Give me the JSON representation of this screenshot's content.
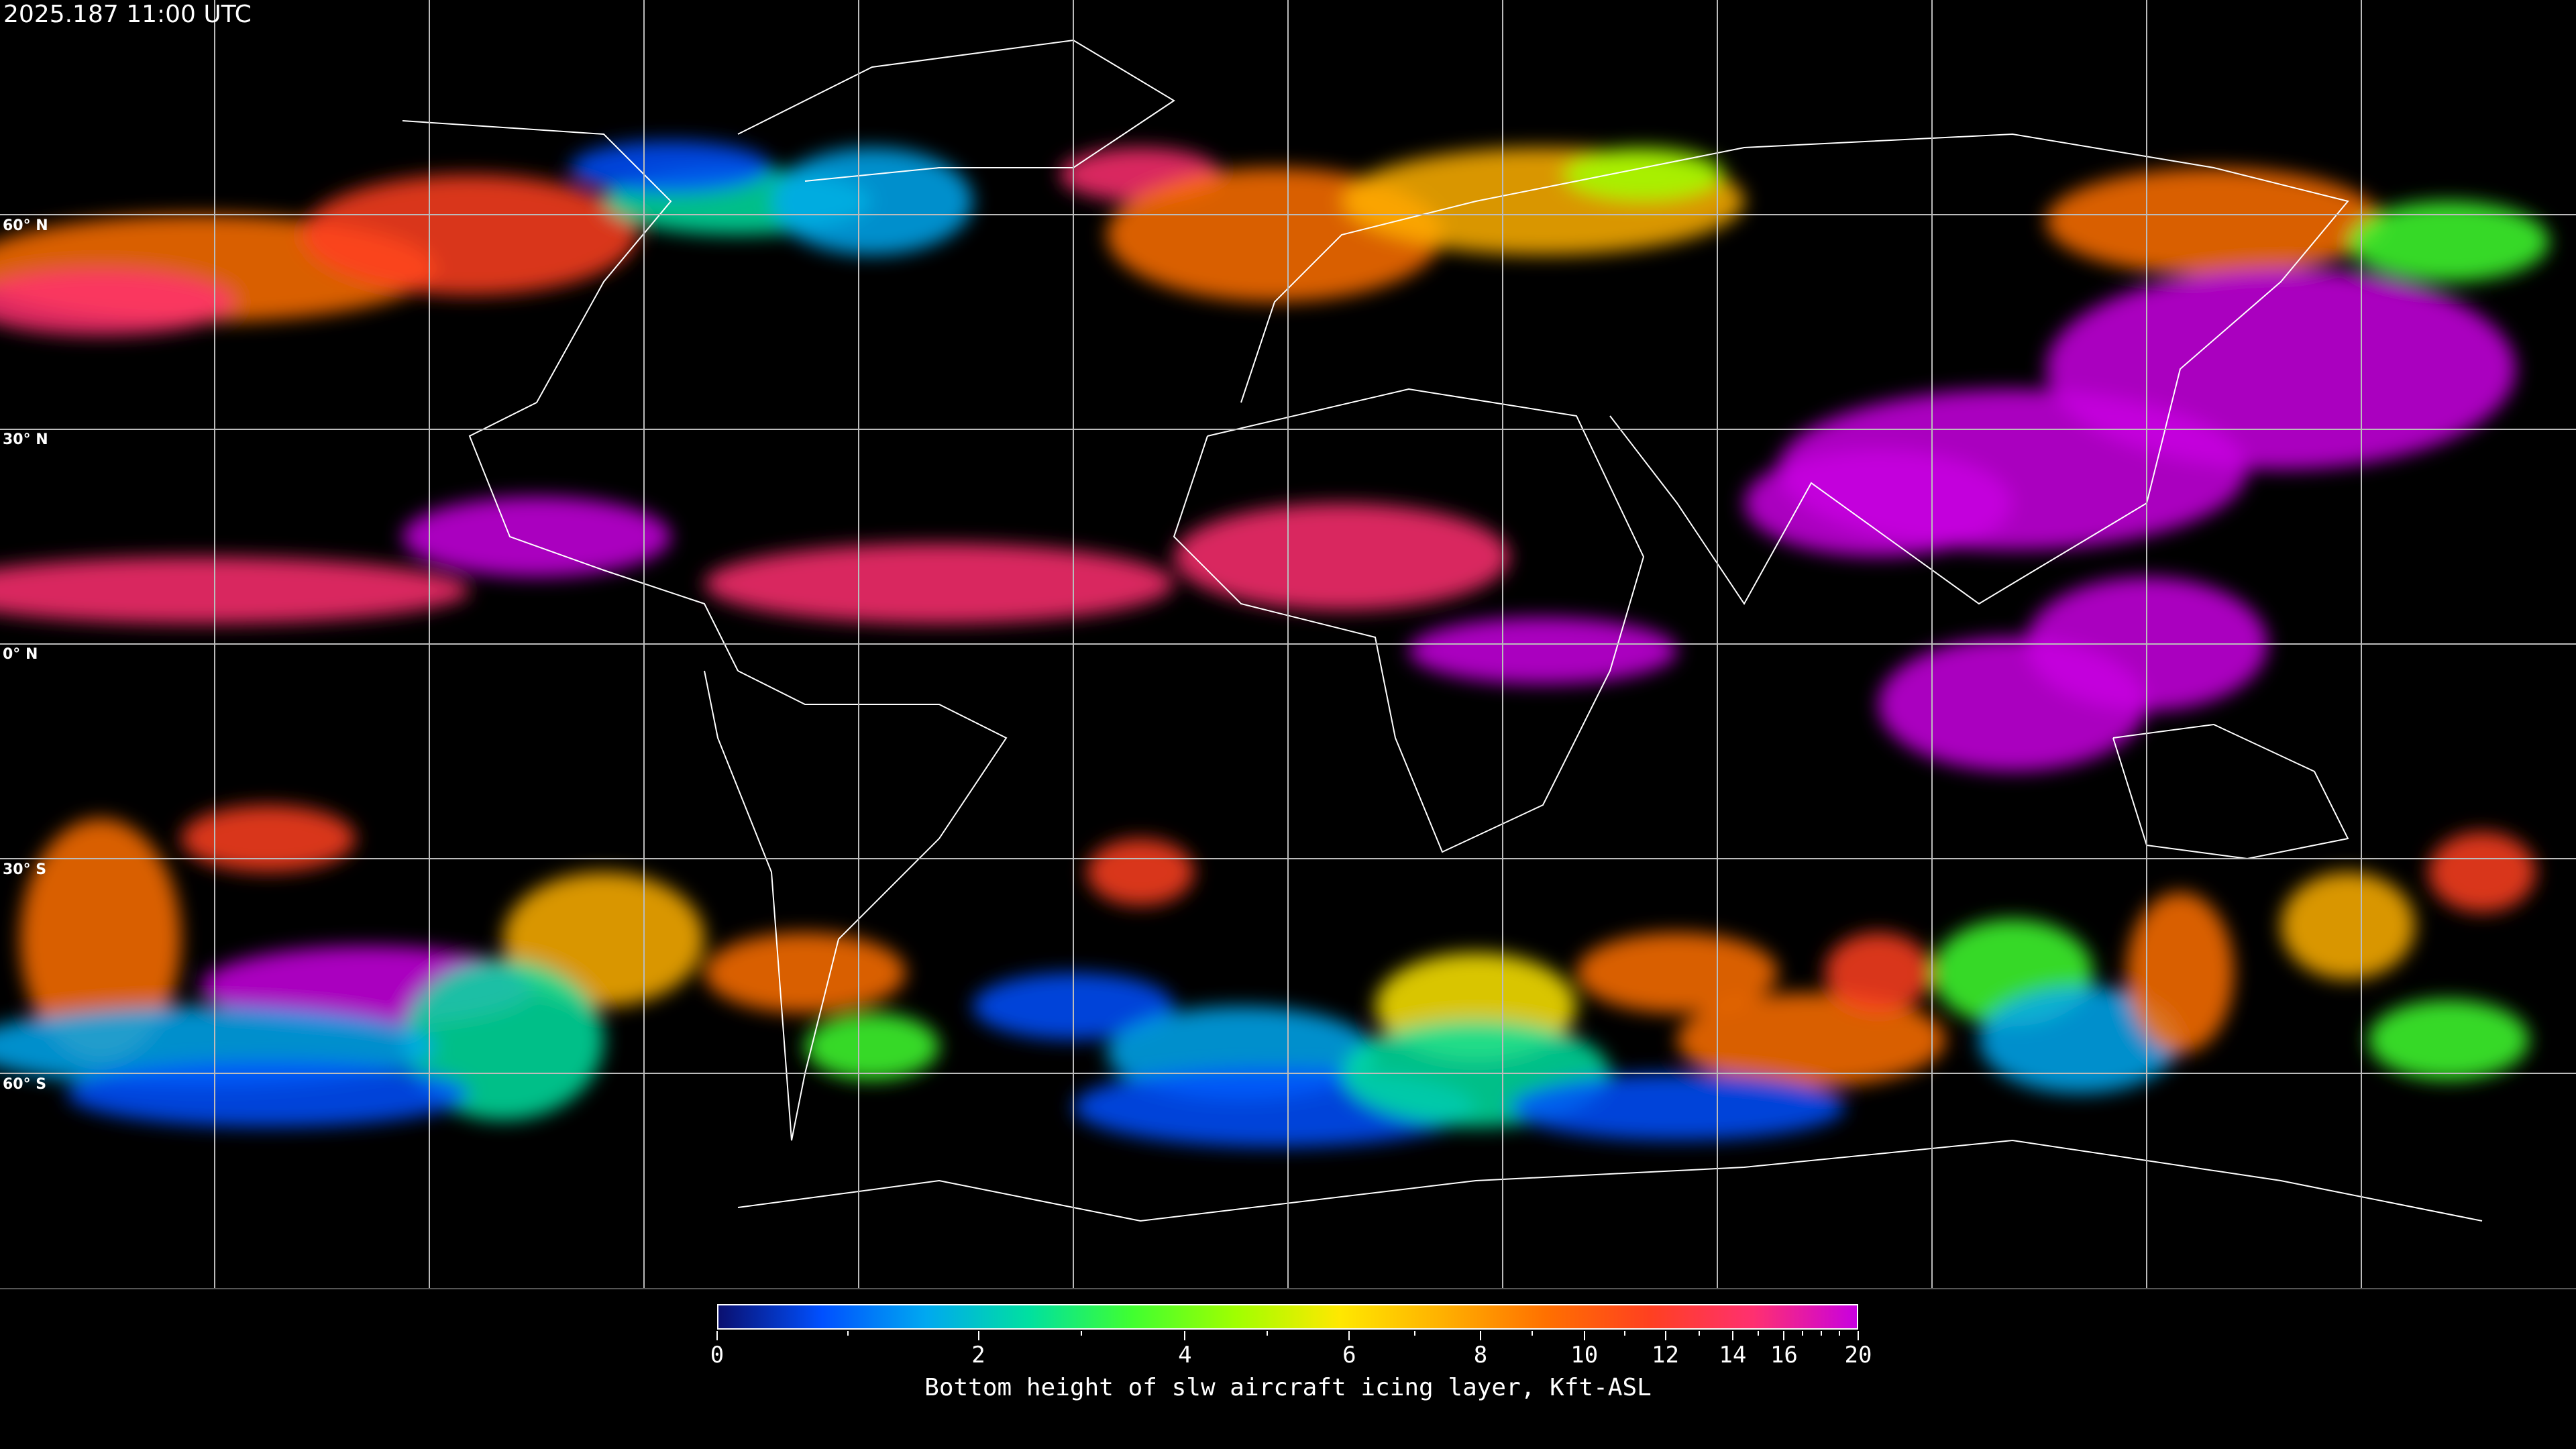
{
  "title": "2025.187 11:00 UTC",
  "map": {
    "projection": "equirectangular",
    "graticule_step_deg": 30,
    "lat_labels": [
      "60° N",
      "30° N",
      "0° N",
      "30° S",
      "60° S"
    ],
    "background": "#000000",
    "coastline_color": "#ffffff"
  },
  "colorbar": {
    "label": "Bottom height of slw aircraft icing layer, Kft-ASL",
    "range": [
      0,
      20
    ],
    "tick_labels": [
      "0",
      "2",
      "4",
      "6",
      "8",
      "10",
      "12",
      "14",
      "16",
      "20"
    ],
    "colors": [
      "#0a1070",
      "#0050ff",
      "#00a8f0",
      "#00e0a0",
      "#40ff30",
      "#a0ff00",
      "#ffe800",
      "#ffb000",
      "#ff7000",
      "#ff4020",
      "#ff3070",
      "#c800e0"
    ]
  }
}
